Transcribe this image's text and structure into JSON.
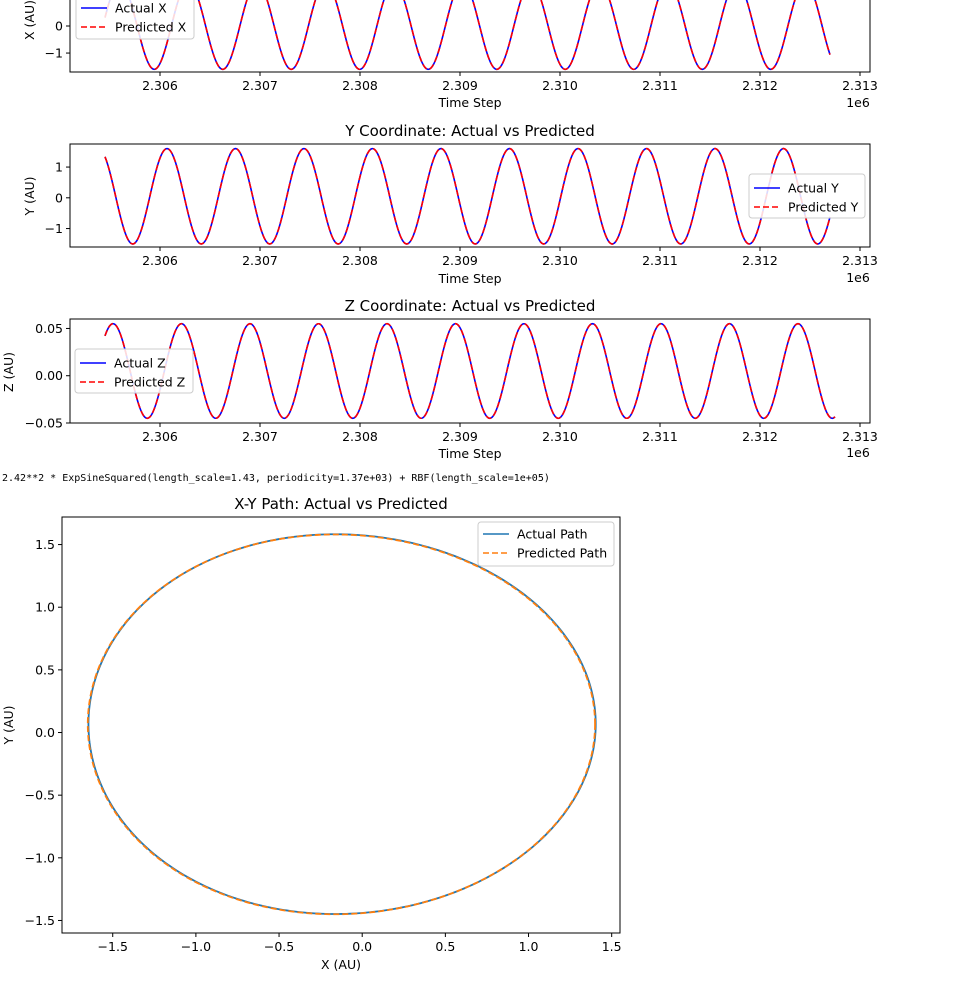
{
  "kernel_text": "2.42**2 * ExpSineSquared(length_scale=1.43, periodicity=1.37e+03) + RBF(length_scale=1e+05)",
  "colors": {
    "actual": "#0000ff",
    "predicted": "#ff0000",
    "path_actual": "#1f77b4",
    "path_predicted": "#ff7f0e"
  },
  "chart_data": [
    {
      "type": "line",
      "title": "",
      "xlabel": "Time Step",
      "ylabel": "X (AU)",
      "offset_text": "1e6",
      "x_ticks": [
        2.306,
        2.307,
        2.308,
        2.309,
        2.31,
        2.311,
        2.312,
        2.313
      ],
      "x_tick_labels": [
        "2.306",
        "2.307",
        "2.308",
        "2.309",
        "2.310",
        "2.311",
        "2.312",
        "2.313"
      ],
      "y_ticks": [
        0,
        -1
      ],
      "y_tick_labels": [
        "0",
        "−1"
      ],
      "xlim": [
        2305.1,
        2313.1
      ],
      "ylim": [
        -1.7,
        1.7
      ],
      "x_start": 2305.45,
      "x_end": 2312.7,
      "period": 0.685,
      "amplitude": 1.6,
      "center": 0.0,
      "phase_x": 2305.6,
      "legend": [
        "Actual X",
        "Predicted X"
      ],
      "legend_position": "upper-left"
    },
    {
      "type": "line",
      "title": "Y Coordinate: Actual vs Predicted",
      "xlabel": "Time Step",
      "ylabel": "Y (AU)",
      "offset_text": "1e6",
      "x_ticks": [
        2.306,
        2.307,
        2.308,
        2.309,
        2.31,
        2.311,
        2.312,
        2.313
      ],
      "x_tick_labels": [
        "2.306",
        "2.307",
        "2.308",
        "2.309",
        "2.310",
        "2.311",
        "2.312",
        "2.313"
      ],
      "y_ticks": [
        1,
        0,
        -1
      ],
      "y_tick_labels": [
        "1",
        "0",
        "−1"
      ],
      "xlim": [
        2305.1,
        2313.1
      ],
      "ylim": [
        -1.6,
        1.75
      ],
      "x_start": 2305.45,
      "x_end": 2312.7,
      "period": 0.685,
      "amplitude": 1.55,
      "center": 0.05,
      "phase_x": 2306.07,
      "legend": [
        "Actual Y",
        "Predicted Y"
      ],
      "legend_position": "center-right"
    },
    {
      "type": "line",
      "title": "Z Coordinate: Actual vs Predicted",
      "xlabel": "Time Step",
      "ylabel": "Z (AU)",
      "offset_text": "1e6",
      "x_ticks": [
        2.306,
        2.307,
        2.308,
        2.309,
        2.31,
        2.311,
        2.312,
        2.313
      ],
      "x_tick_labels": [
        "2.306",
        "2.307",
        "2.308",
        "2.309",
        "2.310",
        "2.311",
        "2.312",
        "2.313"
      ],
      "y_ticks": [
        0.05,
        0.0,
        -0.05
      ],
      "y_tick_labels": [
        "0.05",
        "0.00",
        "−0.05"
      ],
      "xlim": [
        2305.1,
        2313.1
      ],
      "ylim": [
        -0.05,
        0.06
      ],
      "x_start": 2305.45,
      "x_end": 2312.75,
      "period": 0.685,
      "amplitude": 0.05,
      "center": 0.005,
      "phase_x": 2305.53,
      "legend": [
        "Actual Z",
        "Predicted Z"
      ],
      "legend_position": "center-left"
    },
    {
      "type": "line",
      "title": "X-Y Path: Actual vs Predicted",
      "xlabel": "X (AU)",
      "ylabel": "Y (AU)",
      "x_ticks": [
        -1.5,
        -1.0,
        -0.5,
        0.0,
        0.5,
        1.0,
        1.5
      ],
      "x_tick_labels": [
        "−1.5",
        "−1.0",
        "−0.5",
        "0.0",
        "0.5",
        "1.0",
        "1.5"
      ],
      "y_ticks": [
        1.5,
        1.0,
        0.5,
        0.0,
        -0.5,
        -1.0,
        -1.5
      ],
      "y_tick_labels": [
        "1.5",
        "1.0",
        "0.5",
        "0.0",
        "−0.5",
        "−1.0",
        "−1.5"
      ],
      "xlim": [
        -1.805,
        1.55
      ],
      "ylim": [
        -1.6,
        1.72
      ],
      "ellipse": {
        "cx": -0.125,
        "cy": 0.065,
        "rx": 1.525,
        "ry": 1.515
      },
      "legend": [
        "Actual Path",
        "Predicted Path"
      ],
      "legend_position": "upper-right"
    }
  ]
}
